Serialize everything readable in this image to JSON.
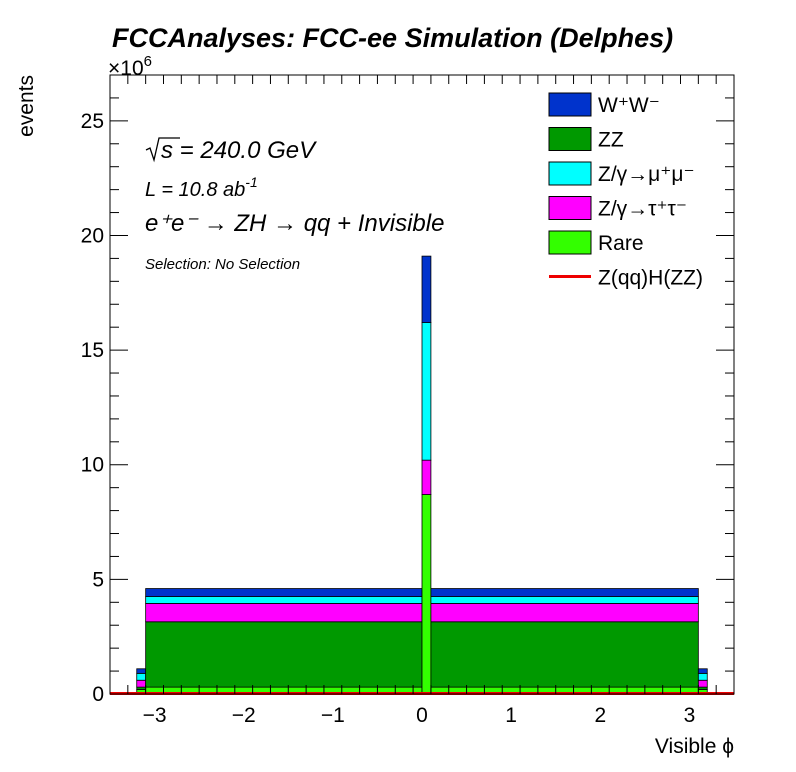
{
  "chart_data": {
    "type": "stacked-histogram",
    "title": "FCCAnalyses: FCC-ee Simulation (Delphes)",
    "xlabel": "Visible ϕ",
    "ylabel": "events",
    "y_multiplier": "×10",
    "y_multiplier_exp": "6",
    "xlim": [
      -3.5,
      3.5
    ],
    "ylim": [
      0,
      27
    ],
    "x_ticks": [
      "−3",
      "−2",
      "−1",
      "0",
      "1",
      "2",
      "3"
    ],
    "x_tick_values": [
      -3,
      -2,
      -1,
      0,
      1,
      2,
      3
    ],
    "y_ticks": [
      "0",
      "5",
      "10",
      "15",
      "20",
      "25"
    ],
    "y_tick_values": [
      0,
      5,
      10,
      15,
      20,
      25
    ],
    "annotations": {
      "sqrt_s": "s = 240.0 GeV",
      "lumi": "L = 10.8 ab",
      "lumi_exp": "-1",
      "process": "e⁺e⁻ → ZH → qq + Invisible",
      "selection": "Selection: No Selection"
    },
    "bins": [
      {
        "x0": -3.2,
        "x1": -3.1,
        "values": [
          0.2,
          0.1,
          0.3,
          0.3,
          0.2,
          0.0
        ]
      },
      {
        "x0": -3.1,
        "x1": 0.0,
        "values": [
          0.3,
          2.85,
          0.8,
          0.3,
          0.35,
          0.0
        ]
      },
      {
        "x0": 0.0,
        "x1": 0.1,
        "values": [
          8.7,
          0.0,
          1.5,
          6.0,
          2.9,
          0.0
        ]
      },
      {
        "x0": 0.1,
        "x1": 3.1,
        "values": [
          0.3,
          2.85,
          0.8,
          0.3,
          0.35,
          0.0
        ]
      },
      {
        "x0": 3.1,
        "x1": 3.2,
        "values": [
          0.2,
          0.1,
          0.3,
          0.3,
          0.2,
          0.0
        ]
      }
    ],
    "stack_order_bottom_to_top": [
      "Rare",
      "ZZ",
      "Z/γ→τ⁺τ⁻",
      "Z/γ→μ⁺μ⁻",
      "W⁺W⁻"
    ],
    "series": [
      {
        "name": "W⁺W⁻",
        "color": "#0033cc",
        "kind": "fill"
      },
      {
        "name": "ZZ",
        "color": "#009900",
        "kind": "fill"
      },
      {
        "name": "Z/γ→μ⁺μ⁻",
        "color": "#00ffff",
        "kind": "fill"
      },
      {
        "name": "Z/γ→τ⁺τ⁻",
        "color": "#ff00ff",
        "kind": "fill"
      },
      {
        "name": "Rare",
        "color": "#33ff00",
        "kind": "fill"
      },
      {
        "name": "Z(qq)H(ZZ)",
        "color": "#ee0000",
        "kind": "line"
      }
    ],
    "legend_position": "top-right"
  }
}
